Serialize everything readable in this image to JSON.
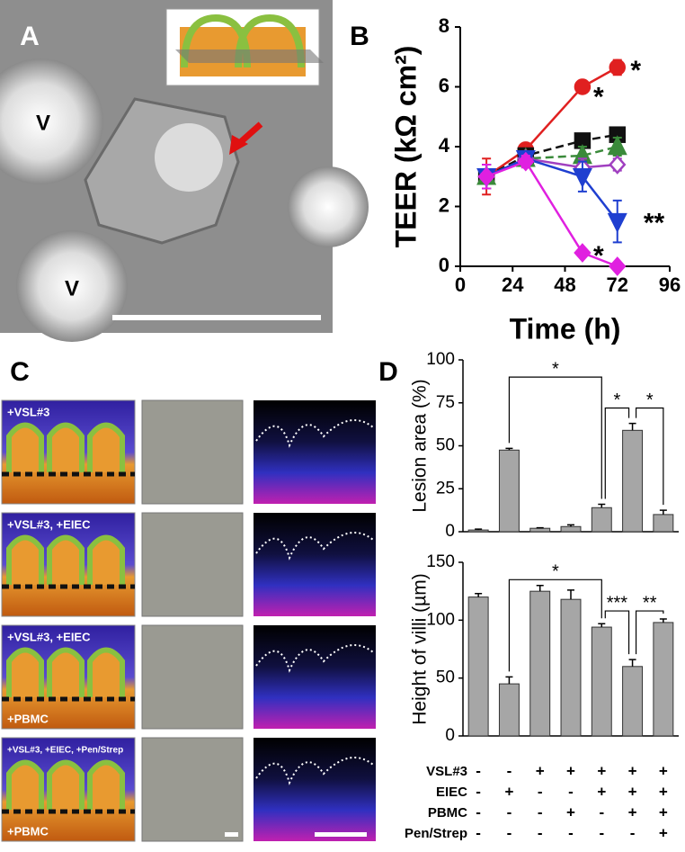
{
  "panels": [
    "A",
    "B",
    "C",
    "D"
  ],
  "panel_a": {
    "labels": [
      "V",
      "V"
    ]
  },
  "panel_c": {
    "rows": [
      {
        "top": "+VSL#3"
      },
      {
        "top": "+VSL#3, +EIEC"
      },
      {
        "top": "+VSL#3, +EIEC",
        "bottom": "+PBMC"
      },
      {
        "top": "+VSL#3, +EIEC, +Pen/Strep",
        "bottom": "+PBMC"
      }
    ]
  },
  "treatments": {
    "rows": [
      {
        "label": "VSL#3",
        "signs": [
          "-",
          "-",
          "+",
          "+",
          "+",
          "+",
          "+"
        ]
      },
      {
        "label": "EIEC",
        "signs": [
          "-",
          "+",
          "-",
          "-",
          "+",
          "+",
          "+"
        ]
      },
      {
        "label": "PBMC",
        "signs": [
          "-",
          "-",
          "-",
          "+",
          "-",
          "+",
          "+"
        ]
      },
      {
        "label": "Pen/Strep",
        "signs": [
          "-",
          "-",
          "-",
          "-",
          "-",
          "-",
          "+"
        ]
      }
    ]
  },
  "chart_data": [
    {
      "type": "line",
      "x_label": "Time (h)",
      "y_label": "TEER (kΩ cm²)",
      "x": [
        12,
        30,
        56,
        72
      ],
      "xlim": [
        0,
        96
      ],
      "xticks": [
        0,
        24,
        48,
        72,
        96
      ],
      "ylim": [
        0,
        8
      ],
      "yticks": [
        0,
        2,
        4,
        6,
        8
      ],
      "series": [
        {
          "color": "#e02020",
          "marker": "circle",
          "filled": true,
          "dashed": false,
          "values": [
            3.0,
            3.9,
            6.0,
            6.65
          ],
          "errors": [
            0.6,
            0.2,
            0.1,
            0.25
          ]
        },
        {
          "color": "#111111",
          "marker": "square",
          "filled": true,
          "dashed": true,
          "values": [
            3.0,
            3.7,
            4.2,
            4.4
          ],
          "errors": [
            0.4,
            0.2,
            0.1,
            0.1
          ]
        },
        {
          "color": "#3a8a3a",
          "marker": "triangle",
          "filled": true,
          "dashed": true,
          "values": [
            3.0,
            3.6,
            3.7,
            4.0
          ],
          "errors": [
            0.4,
            0.2,
            0.3,
            0.3
          ]
        },
        {
          "color": "#a040c0",
          "marker": "diamond",
          "filled": false,
          "dashed": false,
          "values": [
            3.0,
            3.6,
            3.3,
            3.4
          ],
          "errors": [
            0.4,
            0.2,
            0.3,
            0.2
          ]
        },
        {
          "color": "#1f3fd0",
          "marker": "triangle-down",
          "filled": true,
          "dashed": false,
          "values": [
            3.0,
            3.6,
            3.0,
            1.5
          ],
          "errors": [
            0.4,
            0.2,
            0.5,
            0.7
          ]
        },
        {
          "color": "#e020e0",
          "marker": "diamond",
          "filled": true,
          "dashed": false,
          "values": [
            3.0,
            3.5,
            0.45,
            0.0
          ],
          "errors": [
            0.4,
            0.2,
            0.1,
            0.05
          ]
        }
      ],
      "annotations": [
        {
          "text": "*",
          "x": 61,
          "y": 5.6
        },
        {
          "text": "*",
          "x": 78,
          "y": 6.5
        },
        {
          "text": "**",
          "x": 84,
          "y": 1.4
        },
        {
          "text": "*",
          "x": 61,
          "y": 0.3
        }
      ]
    },
    {
      "type": "bar",
      "y_label": "Lesion area (%)",
      "color": "#a6a6a6",
      "categories": [
        null,
        null,
        null,
        null,
        null,
        null,
        null
      ],
      "values": [
        1,
        47.5,
        2,
        3,
        14,
        59,
        10
      ],
      "errors": [
        0.5,
        1,
        0.3,
        1,
        2,
        4,
        2.5
      ],
      "ylim": [
        0,
        100
      ],
      "yticks": [
        0,
        25,
        50,
        75,
        100
      ],
      "significance": [
        {
          "pair": [
            1,
            4
          ],
          "label": "*"
        },
        {
          "pair": [
            4,
            5
          ],
          "label": "*"
        },
        {
          "pair": [
            5,
            6
          ],
          "label": "*"
        }
      ]
    },
    {
      "type": "bar",
      "y_label": "Height of villi (µm)",
      "color": "#a6a6a6",
      "categories": [
        null,
        null,
        null,
        null,
        null,
        null,
        null
      ],
      "values": [
        120,
        45,
        125,
        118,
        94,
        60,
        98
      ],
      "errors": [
        3,
        6,
        5,
        8,
        3,
        6,
        3
      ],
      "ylim": [
        0,
        150
      ],
      "yticks": [
        0,
        50,
        100,
        150
      ],
      "significance": [
        {
          "pair": [
            1,
            4
          ],
          "label": "*"
        },
        {
          "pair": [
            4,
            5
          ],
          "label": "***"
        },
        {
          "pair": [
            5,
            6
          ],
          "label": "**"
        }
      ]
    }
  ]
}
